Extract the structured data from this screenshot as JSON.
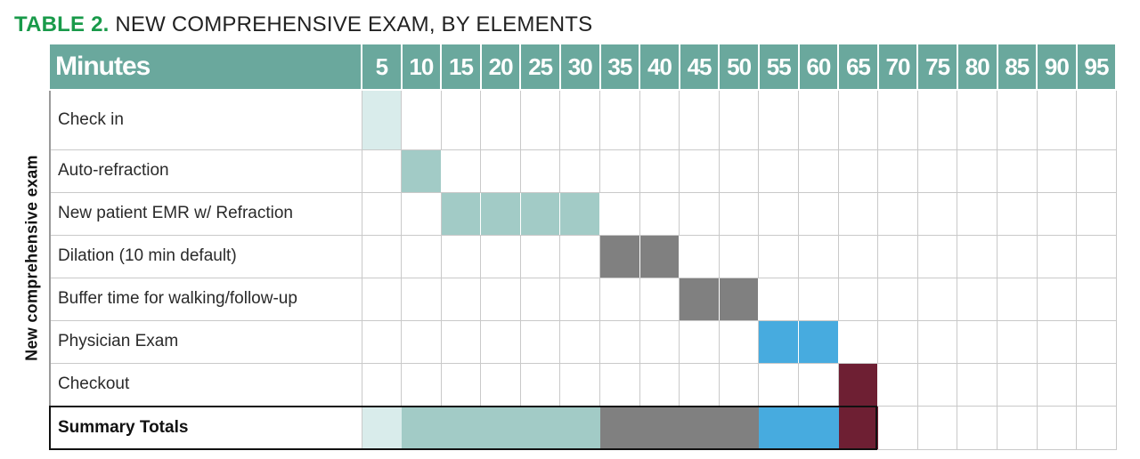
{
  "title": {
    "label": "TABLE 2.",
    "text": "NEW COMPREHENSIVE EXAM, BY ELEMENTS"
  },
  "side_label": "New comprehensive exam",
  "header": {
    "label": "Minutes",
    "minutes": [
      "5",
      "10",
      "15",
      "20",
      "25",
      "30",
      "35",
      "40",
      "45",
      "50",
      "55",
      "60",
      "65",
      "70",
      "75",
      "80",
      "85",
      "90",
      "95"
    ]
  },
  "colors": {
    "header": "#6aa89d",
    "check_in": "#d9eceb",
    "teal": "#a2cbc6",
    "gray": "#808080",
    "blue": "#47abdf",
    "maroon": "#6e1f33"
  },
  "rows": [
    {
      "label": "Check in",
      "start": 5,
      "end": 5,
      "color": "#d9eceb"
    },
    {
      "label": "Auto-refraction",
      "start": 10,
      "end": 10,
      "color": "#a2cbc6"
    },
    {
      "label": " New patient EMR w/ Refraction",
      "start": 15,
      "end": 30,
      "color": "#a2cbc6"
    },
    {
      "label": "Dilation (10 min default)",
      "start": 35,
      "end": 40,
      "color": "#808080"
    },
    {
      "label": "Buffer time for walking/follow-up",
      "start": 45,
      "end": 50,
      "color": "#808080"
    },
    {
      "label": "Physician Exam",
      "start": 55,
      "end": 60,
      "color": "#47abdf"
    },
    {
      "label": "Checkout",
      "start": 65,
      "end": 65,
      "color": "#6e1f33"
    }
  ],
  "summary": {
    "label": "Summary Totals"
  }
}
